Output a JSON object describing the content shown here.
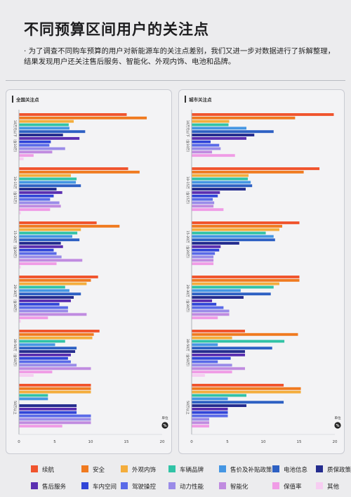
{
  "page": {
    "title": "不同预算区间用户的关注点",
    "intro_bullet": "·",
    "intro": "为了调查不同购车预算的用户对新能源车的关注点差别，我们又进一步对数据进行了拆解整理，结果发现用户还关注售后服务、智能化、外观内饰、电池和品牌。"
  },
  "legend": [
    {
      "name": "续航",
      "color": "#f0542d"
    },
    {
      "name": "安全",
      "color": "#f07a1f"
    },
    {
      "name": "外观内饰",
      "color": "#f4ad3c"
    },
    {
      "name": "车辆品牌",
      "color": "#31c3a6"
    },
    {
      "name": "售价及补贴政策",
      "color": "#4596e3"
    },
    {
      "name": "电池信息",
      "color": "#2d60c3"
    },
    {
      "name": "质保政策",
      "color": "#242c8e"
    },
    {
      "name": "售后服务",
      "color": "#5a2fb1"
    },
    {
      "name": "车内空间",
      "color": "#3045d8"
    },
    {
      "name": "驾驶操控",
      "color": "#5a6ae8"
    },
    {
      "name": "动力性能",
      "color": "#9a8be8"
    },
    {
      "name": "智能化",
      "color": "#c08be0"
    },
    {
      "name": "保值率",
      "color": "#f09ce6"
    },
    {
      "name": "其他",
      "color": "#f7cdf2"
    }
  ],
  "chart_data": [
    {
      "type": "bar",
      "orientation": "horizontal",
      "title": "全国关注点",
      "unit_label": "单位",
      "unit_badge": "%",
      "xlim": [
        0,
        20
      ],
      "xticks": [
        0,
        5,
        10,
        15,
        20
      ],
      "categories": [
        "10万元以下（含10万）",
        "10-15万（含15万）",
        "15-20万（含20万）",
        "20-30万（含30万）",
        "30-50万（含50万）",
        "50万以上"
      ],
      "series": [
        {
          "name": "续航",
          "values": [
            15.0,
            15.2,
            10.8,
            11.0,
            11.2,
            10.0
          ]
        },
        {
          "name": "安全",
          "values": [
            17.8,
            16.8,
            14.0,
            10.0,
            10.4,
            10.0
          ]
        },
        {
          "name": "外观内饰",
          "values": [
            7.6,
            7.2,
            8.6,
            9.4,
            10.2,
            10.0
          ]
        },
        {
          "name": "车辆品牌",
          "values": [
            6.9,
            8.0,
            8.1,
            6.4,
            6.4,
            4.0
          ]
        },
        {
          "name": "售价及补贴政策",
          "values": [
            7.0,
            7.9,
            7.4,
            7.0,
            5.0,
            4.0
          ]
        },
        {
          "name": "电池信息",
          "values": [
            9.2,
            8.6,
            8.4,
            8.6,
            8.0,
            0
          ]
        },
        {
          "name": "质保政策",
          "values": [
            6.1,
            5.2,
            5.8,
            7.6,
            7.8,
            8.0
          ]
        },
        {
          "name": "售后服务",
          "values": [
            8.4,
            6.0,
            6.1,
            7.2,
            7.2,
            8.0
          ]
        },
        {
          "name": "车内空间",
          "values": [
            4.4,
            4.8,
            4.8,
            5.6,
            6.8,
            8.0
          ]
        },
        {
          "name": "驾驶操控",
          "values": [
            4.2,
            4.3,
            5.2,
            6.8,
            7.2,
            10.0
          ]
        },
        {
          "name": "动力性能",
          "values": [
            6.4,
            5.6,
            5.9,
            6.8,
            8.0,
            10.0
          ]
        },
        {
          "name": "智能化",
          "values": [
            4.6,
            5.8,
            8.8,
            9.4,
            10.0,
            10.0
          ]
        },
        {
          "name": "保值率",
          "values": [
            2.0,
            4.3,
            5.2,
            4.0,
            4.6,
            6.0
          ]
        },
        {
          "name": "其他",
          "values": [
            0.6,
            0.2,
            0.2,
            0.2,
            2.0,
            0
          ]
        }
      ]
    },
    {
      "type": "bar",
      "orientation": "horizontal",
      "title": "城市关注点",
      "unit_label": "单位",
      "unit_badge": "%",
      "xlim": [
        0,
        20
      ],
      "xticks": [
        0,
        5,
        10,
        15,
        20
      ],
      "categories": [
        "10万元以下（含10万）",
        "10-15万（含15万）",
        "15-20万（含20万）",
        "20-30万（含30万）",
        "30-50万（含50万）",
        "50万以上"
      ],
      "series": [
        {
          "name": "续航",
          "values": [
            19.8,
            17.8,
            15.0,
            15.0,
            7.4,
            12.8
          ]
        },
        {
          "name": "安全",
          "values": [
            14.4,
            15.6,
            12.6,
            15.0,
            14.8,
            15.2
          ]
        },
        {
          "name": "外观内饰",
          "values": [
            5.2,
            7.9,
            12.2,
            12.2,
            5.6,
            15.2
          ]
        },
        {
          "name": "车辆品牌",
          "values": [
            5.1,
            7.8,
            10.3,
            11.4,
            12.9,
            7.6
          ]
        },
        {
          "name": "售价及补贴政策",
          "values": [
            7.6,
            8.2,
            11.4,
            6.8,
            3.6,
            5.0
          ]
        },
        {
          "name": "电池信息",
          "values": [
            11.4,
            8.4,
            11.6,
            11.0,
            11.2,
            12.8
          ]
        },
        {
          "name": "质保政策",
          "values": [
            8.7,
            7.5,
            6.6,
            7.2,
            7.4,
            7.6
          ]
        },
        {
          "name": "售后服务",
          "values": [
            7.6,
            3.9,
            4.0,
            2.8,
            7.4,
            5.0
          ]
        },
        {
          "name": "车内空间",
          "values": [
            2.6,
            3.6,
            3.8,
            3.4,
            5.4,
            5.0
          ]
        },
        {
          "name": "驾驶操控",
          "values": [
            3.8,
            2.9,
            3.2,
            4.4,
            3.6,
            5.0
          ]
        },
        {
          "name": "动力性能",
          "values": [
            4.0,
            3.1,
            3.0,
            5.2,
            5.6,
            2.4
          ]
        },
        {
          "name": "智能化",
          "values": [
            2.8,
            3.0,
            3.0,
            5.2,
            7.4,
            2.4
          ]
        },
        {
          "name": "保值率",
          "values": [
            6.0,
            4.4,
            3.0,
            3.6,
            5.6,
            2.4
          ]
        },
        {
          "name": "其他",
          "values": [
            0,
            0,
            0,
            0,
            1.8,
            0
          ]
        }
      ]
    }
  ]
}
